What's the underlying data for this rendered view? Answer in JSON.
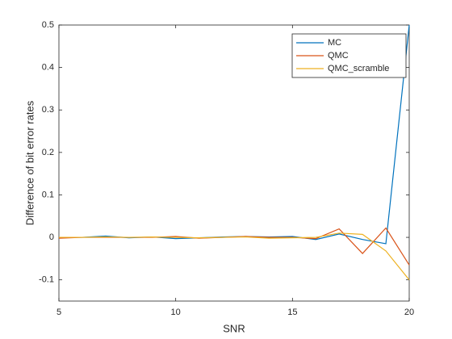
{
  "chart_data": {
    "type": "line",
    "x_label": "SNR",
    "y_label": "Difference of bit error rates",
    "x": [
      5,
      6,
      7,
      8,
      9,
      10,
      11,
      12,
      13,
      14,
      15,
      16,
      17,
      18,
      19,
      20
    ],
    "series": [
      {
        "name": "MC",
        "color": "#0072BD",
        "values": [
          0,
          0,
          0.003,
          -0.001,
          0.001,
          -0.003,
          -0.001,
          0.001,
          0.002,
          0.001,
          0.002,
          -0.005,
          0.008,
          -0.005,
          -0.015,
          0.5
        ]
      },
      {
        "name": "QMC",
        "color": "#D95319",
        "values": [
          -0.002,
          0,
          0,
          0,
          0,
          0.002,
          -0.002,
          0,
          0.002,
          0,
          0,
          -0.003,
          0.02,
          -0.038,
          0.022,
          -0.065
        ]
      },
      {
        "name": "QMC_scramble",
        "color": "#EDB120",
        "values": [
          0,
          0,
          0.001,
          0,
          0.001,
          0,
          -0.001,
          0,
          0.001,
          -0.002,
          -0.001,
          0,
          0.01,
          0.007,
          -0.032,
          -0.1
        ]
      }
    ],
    "xlim": [
      5,
      20
    ],
    "xticks": [
      5,
      10,
      15,
      20
    ],
    "ylim": [
      -0.15,
      0.5
    ],
    "yticks": [
      -0.1,
      0,
      0.1,
      0.2,
      0.3,
      0.4,
      0.5
    ],
    "grid": false,
    "legend": "northeast"
  }
}
